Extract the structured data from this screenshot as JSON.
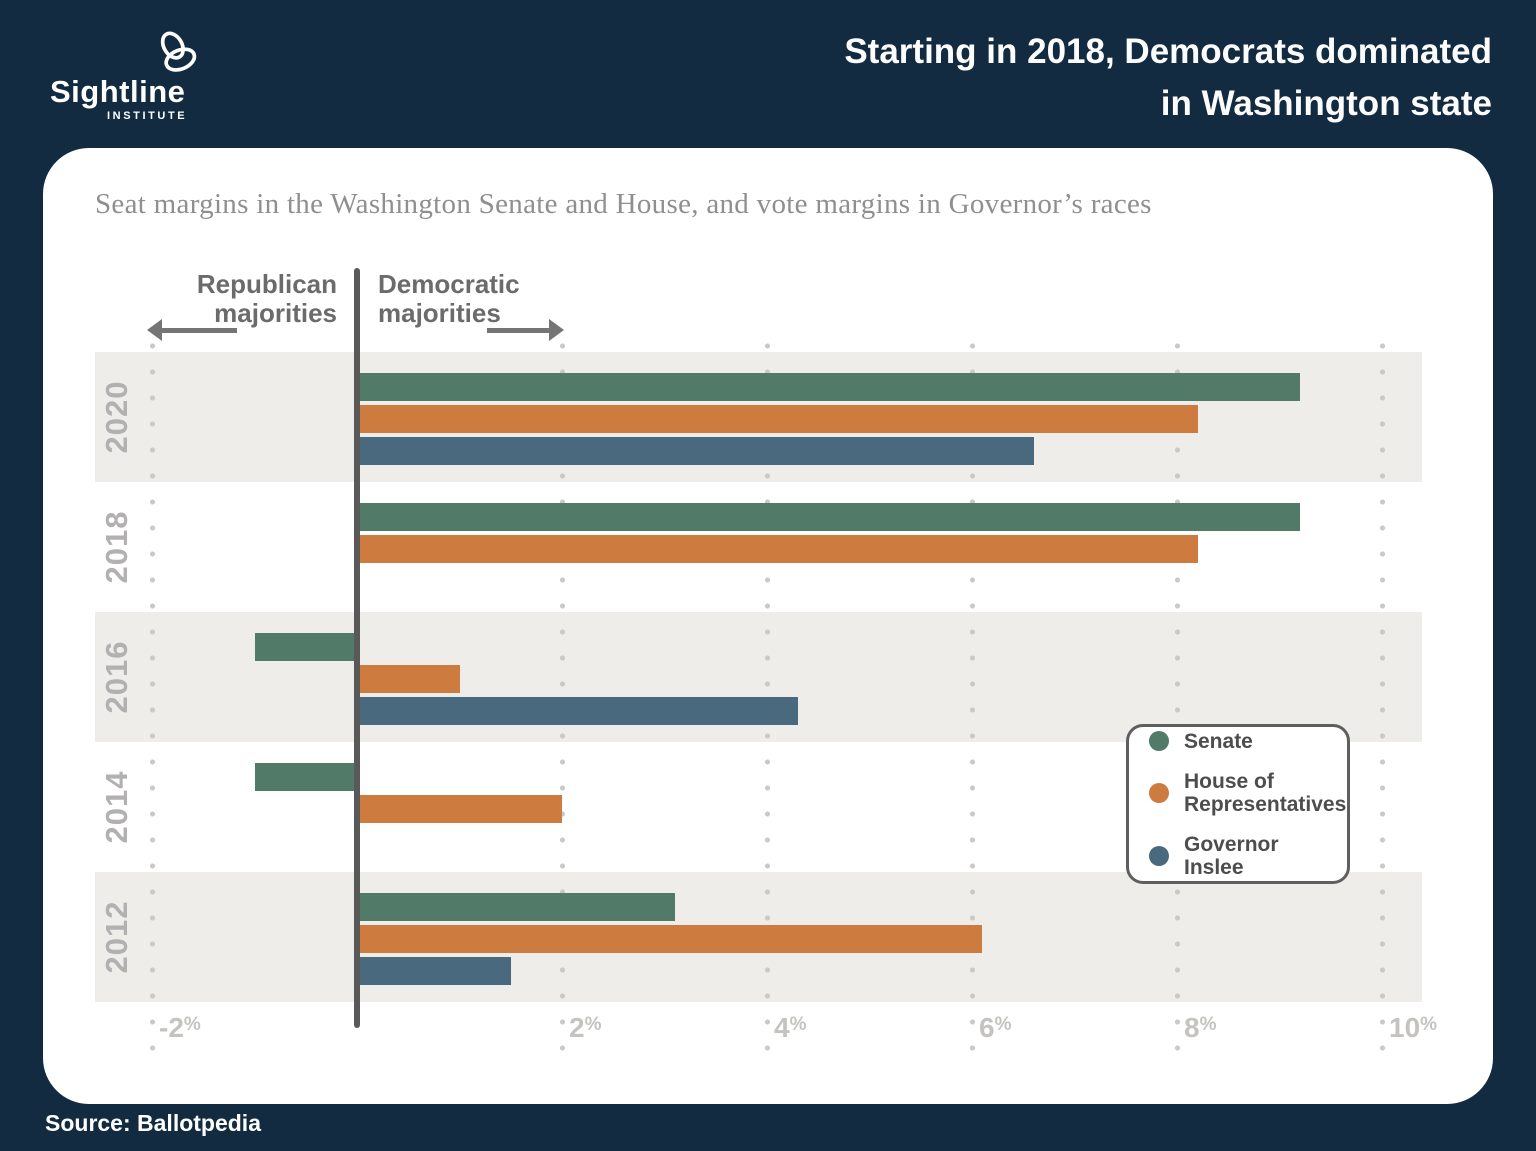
{
  "header": {
    "logo": {
      "name": "Sightline",
      "subname": "INSTITUTE"
    },
    "title_lines": [
      "Starting in 2018, Democrats dominated",
      "in Washington state"
    ]
  },
  "annotations": {
    "left_lines": [
      "Republican",
      "majorities"
    ],
    "right_lines": [
      "Democratic",
      "majorities"
    ]
  },
  "chart_data": {
    "type": "bar",
    "orientation": "horizontal",
    "title": "Seat margins in the Washington Senate and House, and vote margins in Governor’s races",
    "categories": [
      "2020",
      "2018",
      "2016",
      "2014",
      "2012"
    ],
    "series": [
      {
        "name": "Senate",
        "color": "#527A68",
        "values": [
          9.2,
          9.2,
          -1.0,
          -1.0,
          3.1
        ]
      },
      {
        "name": "House of Representatives",
        "color": "#CE7B3F",
        "values": [
          8.2,
          8.2,
          1.0,
          2.0,
          6.1
        ]
      },
      {
        "name": "Governor Inslee",
        "color": "#49697F",
        "values": [
          6.6,
          null,
          4.3,
          null,
          1.5
        ]
      }
    ],
    "unit": "%",
    "xlim": [
      -2.6,
      10.4
    ],
    "xticks": {
      "values": [
        -2,
        2,
        4,
        6,
        8,
        10
      ],
      "labels": [
        "-2%",
        "2%",
        "4%",
        "6%",
        "8%",
        "10%"
      ]
    },
    "zero_line": true,
    "grid": "dotted-vertical",
    "legend_position": "middle-right",
    "row_banding": "alternate-shaded-starting-2020"
  },
  "legend": {
    "items": [
      {
        "label": "Senate",
        "color": "#527A68"
      },
      {
        "label": "House of Representatives",
        "color": "#CE7B3F"
      },
      {
        "label": "Governor Inslee",
        "color": "#49697F"
      }
    ]
  },
  "footer": {
    "source": "Source: Ballotpedia"
  },
  "colors": {
    "background": "#122B40",
    "card": "#FFFFFF",
    "band": "#EFEDEA",
    "zero_line": "#595959",
    "grid_dot": "#CBC9C6",
    "annotation_text": "#6B6B6B",
    "axis_text": "#C5C3C0",
    "year_text": "#B2B0B0"
  }
}
